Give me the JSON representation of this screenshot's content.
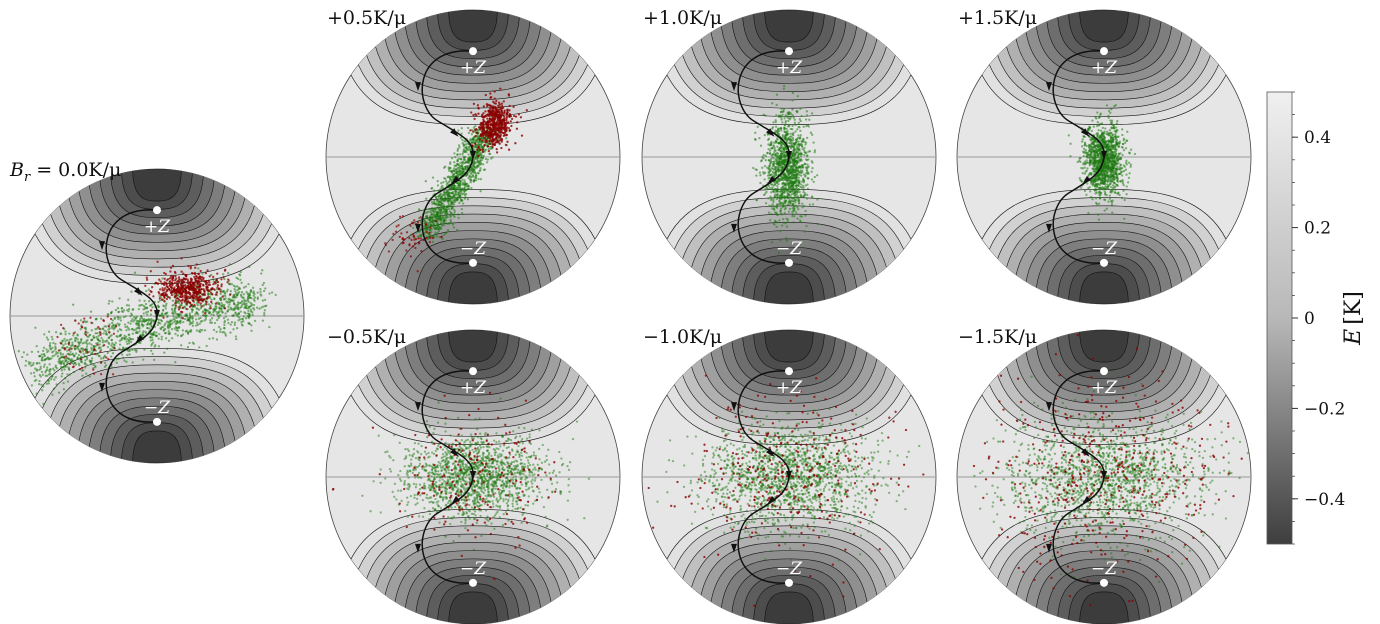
{
  "figure": {
    "panels": [
      {
        "label": "B",
        "sub": "r",
        "rest": " = 0.0K/μ",
        "field": 0.0
      },
      {
        "label": "+0.5K/μ",
        "field": 0.5
      },
      {
        "label": "+1.0K/μ",
        "field": 1.0
      },
      {
        "label": "+1.5K/μ",
        "field": 1.5
      },
      {
        "label": "−0.5K/μ",
        "field": -0.5
      },
      {
        "label": "−1.0K/μ",
        "field": -1.0
      },
      {
        "label": "−1.5K/μ",
        "field": -1.5
      }
    ],
    "pole_labels": {
      "top": "+Z",
      "bottom": "−Z"
    },
    "colors": {
      "sphere_fill": "#e6e6e6",
      "contour_dark": "#3a3a3a",
      "contour_line": "#111111",
      "green_points": "#1f7a12",
      "red_points": "#8b0000",
      "trajectory": "#111111",
      "equator": "#9a9a9a"
    }
  },
  "colorbar": {
    "label_main": "E",
    "label_unit": "[K]",
    "ticks": [
      "0.4",
      "0.2",
      "0",
      "−0.2",
      "−0.4"
    ],
    "tick_values": [
      0.4,
      0.2,
      0.0,
      -0.2,
      -0.4
    ],
    "range": [
      -0.5,
      0.5
    ]
  }
}
